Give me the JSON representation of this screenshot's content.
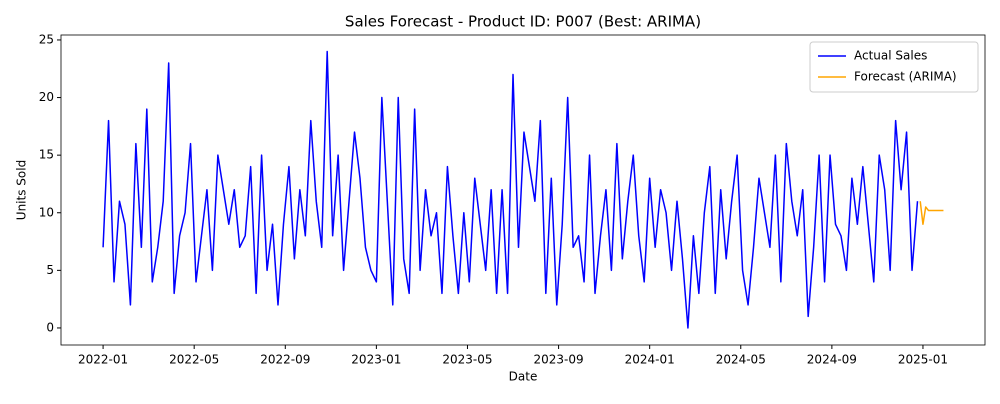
{
  "chart_data": {
    "type": "line",
    "title": "Sales Forecast - Product ID: P007 (Best: ARIMA)",
    "x_label": "Date",
    "y_label": "Units Sold",
    "xlim": [
      2021.846,
      2025.227
    ],
    "ylim": [
      -1.48,
      25.43
    ],
    "xticks": [
      {
        "value": 2022,
        "label": "2022-01"
      },
      {
        "value": 2022.3333,
        "label": "2022-05"
      },
      {
        "value": 2022.6667,
        "label": "2022-09"
      },
      {
        "value": 2023,
        "label": "2023-01"
      },
      {
        "value": 2023.3333,
        "label": "2023-05"
      },
      {
        "value": 2023.6667,
        "label": "2023-09"
      },
      {
        "value": 2024,
        "label": "2024-01"
      },
      {
        "value": 2024.3333,
        "label": "2024-05"
      },
      {
        "value": 2024.6667,
        "label": "2024-09"
      },
      {
        "value": 2025,
        "label": "2025-01"
      }
    ],
    "yticks": [
      0,
      5,
      10,
      15,
      20,
      25
    ],
    "grid": false,
    "legend": "upper right",
    "series": [
      {
        "name": "Actual Sales",
        "color": "#0000ff",
        "x": [
          2022,
          2022.02,
          2022.04,
          2022.06,
          2022.08,
          2022.1,
          2022.12,
          2022.14,
          2022.16,
          2022.18,
          2022.2,
          2022.22,
          2022.24,
          2022.26,
          2022.28,
          2022.3,
          2022.32,
          2022.34,
          2022.36,
          2022.38,
          2022.4,
          2022.42,
          2022.44,
          2022.46,
          2022.48,
          2022.5,
          2022.52,
          2022.54,
          2022.56,
          2022.58,
          2022.6,
          2022.62,
          2022.64,
          2022.66,
          2022.68,
          2022.7,
          2022.72,
          2022.74,
          2022.76,
          2022.78,
          2022.8,
          2022.82,
          2022.84,
          2022.86,
          2022.88,
          2022.9,
          2022.92,
          2022.94,
          2022.96,
          2022.98,
          2023,
          2023.02,
          2023.04,
          2023.06,
          2023.08,
          2023.1,
          2023.12,
          2023.14,
          2023.16,
          2023.18,
          2023.2,
          2023.22,
          2023.24,
          2023.26,
          2023.28,
          2023.3,
          2023.32,
          2023.34,
          2023.36,
          2023.38,
          2023.4,
          2023.42,
          2023.44,
          2023.46,
          2023.48,
          2023.5,
          2023.52,
          2023.54,
          2023.56,
          2023.58,
          2023.6,
          2023.62,
          2023.64,
          2023.66,
          2023.68,
          2023.7,
          2023.72,
          2023.74,
          2023.76,
          2023.78,
          2023.8,
          2023.82,
          2023.84,
          2023.86,
          2023.88,
          2023.9,
          2023.92,
          2023.94,
          2023.96,
          2023.98,
          2024,
          2024.02,
          2024.04,
          2024.06,
          2024.08,
          2024.1,
          2024.12,
          2024.14,
          2024.16,
          2024.18,
          2024.2,
          2024.22,
          2024.24,
          2024.26,
          2024.28,
          2024.3,
          2024.32,
          2024.34,
          2024.36,
          2024.38,
          2024.4,
          2024.42,
          2024.44,
          2024.46,
          2024.48,
          2024.5,
          2024.52,
          2024.54,
          2024.56,
          2024.58,
          2024.6,
          2024.62,
          2024.64,
          2024.66,
          2024.68,
          2024.7,
          2024.72,
          2024.74,
          2024.76,
          2024.78,
          2024.8,
          2024.82,
          2024.84,
          2024.86,
          2024.88,
          2024.9,
          2024.92,
          2024.94,
          2024.96,
          2024.98
        ],
        "values": [
          7,
          18,
          4,
          11,
          9,
          2,
          16,
          7,
          19,
          4,
          7,
          11,
          23,
          3,
          8,
          10,
          16,
          4,
          8,
          12,
          5,
          15,
          12,
          9,
          12,
          7,
          8,
          14,
          3,
          15,
          5,
          9,
          2,
          9,
          14,
          6,
          12,
          8,
          18,
          11,
          7,
          24,
          8,
          15,
          5,
          11,
          17,
          13,
          7,
          5,
          4,
          20,
          11,
          2,
          20,
          6,
          3,
          19,
          5,
          12,
          8,
          10,
          3,
          14,
          8,
          3,
          10,
          4,
          13,
          9,
          5,
          12,
          3,
          12,
          3,
          22,
          7,
          17,
          14,
          11,
          18,
          3,
          13,
          2,
          9,
          20,
          7,
          8,
          4,
          15,
          3,
          8,
          12,
          5,
          16,
          6,
          11,
          15,
          8,
          4,
          13,
          7,
          12,
          10,
          5,
          11,
          6,
          0,
          8,
          3,
          10,
          14,
          3,
          12,
          6,
          11,
          15,
          5,
          2,
          7,
          13,
          10,
          7,
          15,
          4,
          16,
          11,
          8,
          12,
          1,
          7,
          15,
          4,
          15,
          9,
          8,
          5,
          13,
          9,
          14,
          9,
          4,
          15,
          12,
          5,
          18,
          12,
          17,
          5,
          11
        ]
      },
      {
        "name": "Forecast (ARIMA)",
        "color": "#ffa500",
        "x": [
          2024.99,
          2025,
          2025.01,
          2025.02,
          2025.04,
          2025.06,
          2025.075
        ],
        "values": [
          11,
          9,
          10.5,
          10.2,
          10.2,
          10.2,
          10.2
        ]
      }
    ]
  }
}
